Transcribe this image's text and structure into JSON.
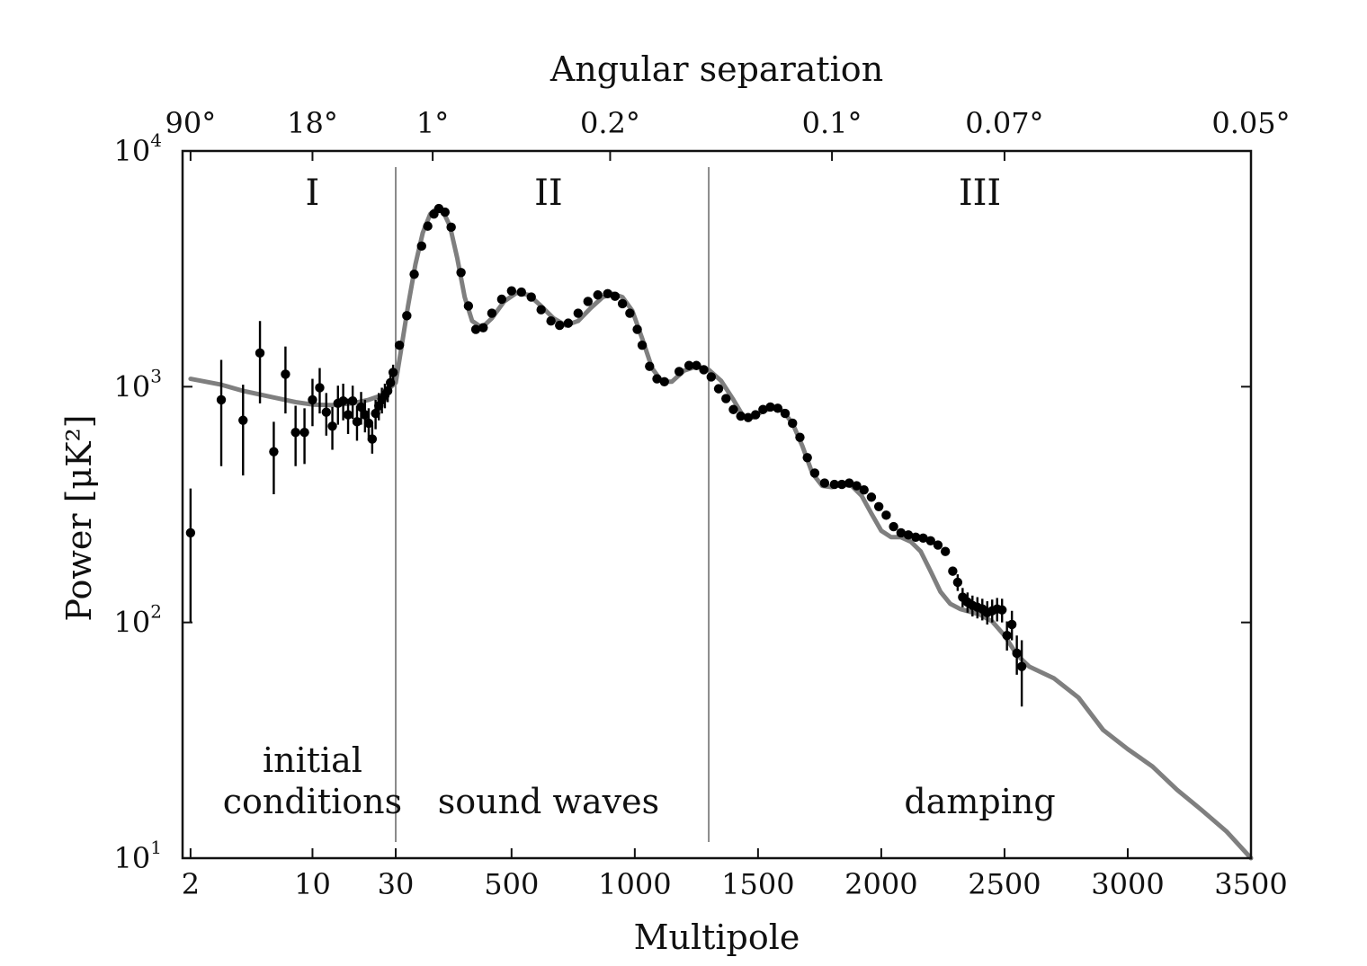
{
  "chart_data": {
    "type": "scatter",
    "title": "Angular separation",
    "xlabel": "Multipole",
    "ylabel": "Power [μK²]",
    "yscale": "log",
    "ylim": [
      10,
      10000
    ],
    "x_axis": {
      "segments": [
        {
          "scale": "log",
          "range": [
            1.8,
            30
          ]
        },
        {
          "scale": "linear",
          "range": [
            30,
            3500
          ]
        }
      ],
      "ticks": [
        2,
        10,
        30,
        500,
        1000,
        1500,
        2000,
        2500,
        3000,
        3500
      ],
      "tick_labels": [
        "2",
        "10",
        "30",
        "500",
        "1000",
        "1500",
        "2000",
        "2500",
        "3000",
        "3500"
      ]
    },
    "y_axis": {
      "ticks": [
        10,
        100,
        1000,
        10000
      ],
      "tick_labels": [
        {
          "base": "10",
          "exp": "1"
        },
        {
          "base": "10",
          "exp": "2"
        },
        {
          "base": "10",
          "exp": "3"
        },
        {
          "base": "10",
          "exp": "4"
        }
      ]
    },
    "top_axis": {
      "label": "Angular separation",
      "ticks": [
        {
          "multipole": 2,
          "label": "90°"
        },
        {
          "multipole": 10,
          "label": "18°"
        },
        {
          "multipole": 180,
          "label": "1°"
        },
        {
          "multipole": 900,
          "label": "0.2°"
        },
        {
          "multipole": 1800,
          "label": "0.1°"
        },
        {
          "multipole": 2500,
          "label": "0.07°"
        },
        {
          "multipole": 3500,
          "label": "0.05°"
        }
      ]
    },
    "region_dividers": [
      30,
      1300
    ],
    "regions": [
      {
        "numeral": "I",
        "description": [
          "initial",
          "conditions"
        ],
        "center": 10
      },
      {
        "numeral": "II",
        "description": [
          "sound waves"
        ],
        "center": 650
      },
      {
        "numeral": "III",
        "description": [
          "damping"
        ],
        "center": 2400
      }
    ],
    "model_curve": {
      "name": "theory",
      "color": "#7f7f7f",
      "points": [
        [
          2,
          1080
        ],
        [
          3,
          1020
        ],
        [
          4,
          960
        ],
        [
          6,
          900
        ],
        [
          8,
          860
        ],
        [
          10,
          840
        ],
        [
          13,
          835
        ],
        [
          17,
          850
        ],
        [
          21,
          880
        ],
        [
          25,
          920
        ],
        [
          30,
          1040
        ],
        [
          50,
          1400
        ],
        [
          80,
          2200
        ],
        [
          110,
          3300
        ],
        [
          140,
          4500
        ],
        [
          170,
          5400
        ],
        [
          200,
          5750
        ],
        [
          220,
          5600
        ],
        [
          250,
          4800
        ],
        [
          280,
          3500
        ],
        [
          310,
          2400
        ],
        [
          340,
          1900
        ],
        [
          380,
          1780
        ],
        [
          420,
          1950
        ],
        [
          470,
          2300
        ],
        [
          520,
          2500
        ],
        [
          570,
          2450
        ],
        [
          620,
          2200
        ],
        [
          670,
          1950
        ],
        [
          720,
          1820
        ],
        [
          770,
          1900
        ],
        [
          820,
          2150
        ],
        [
          870,
          2400
        ],
        [
          910,
          2480
        ],
        [
          950,
          2400
        ],
        [
          990,
          2100
        ],
        [
          1030,
          1600
        ],
        [
          1070,
          1200
        ],
        [
          1110,
          1050
        ],
        [
          1150,
          1050
        ],
        [
          1200,
          1170
        ],
        [
          1250,
          1220
        ],
        [
          1300,
          1180
        ],
        [
          1350,
          1060
        ],
        [
          1400,
          880
        ],
        [
          1440,
          750
        ],
        [
          1480,
          740
        ],
        [
          1520,
          790
        ],
        [
          1560,
          810
        ],
        [
          1600,
          790
        ],
        [
          1640,
          700
        ],
        [
          1680,
          560
        ],
        [
          1720,
          430
        ],
        [
          1760,
          380
        ],
        [
          1800,
          375
        ],
        [
          1840,
          385
        ],
        [
          1880,
          380
        ],
        [
          1920,
          345
        ],
        [
          1960,
          290
        ],
        [
          2000,
          245
        ],
        [
          2040,
          230
        ],
        [
          2080,
          230
        ],
        [
          2120,
          220
        ],
        [
          2160,
          200
        ],
        [
          2200,
          165
        ],
        [
          2240,
          135
        ],
        [
          2280,
          120
        ],
        [
          2320,
          114
        ],
        [
          2360,
          111
        ],
        [
          2400,
          108
        ],
        [
          2450,
          101
        ],
        [
          2500,
          88
        ],
        [
          2550,
          73
        ],
        [
          2600,
          65
        ],
        [
          2700,
          58
        ],
        [
          2800,
          48
        ],
        [
          2900,
          35
        ],
        [
          3000,
          29
        ],
        [
          3100,
          24.5
        ],
        [
          3200,
          19.5
        ],
        [
          3300,
          16
        ],
        [
          3400,
          13
        ],
        [
          3500,
          10
        ]
      ]
    },
    "measurements": {
      "name": "data",
      "color": "#000000",
      "points": [
        {
          "x": 2,
          "y": 240,
          "lo": 100,
          "hi": 370
        },
        {
          "x": 3,
          "y": 880,
          "lo": 460,
          "hi": 1300
        },
        {
          "x": 4,
          "y": 720,
          "lo": 420,
          "hi": 1020
        },
        {
          "x": 5,
          "y": 1390,
          "lo": 850,
          "hi": 1900
        },
        {
          "x": 6,
          "y": 530,
          "lo": 350,
          "hi": 710
        },
        {
          "x": 7,
          "y": 1130,
          "lo": 770,
          "hi": 1480
        },
        {
          "x": 8,
          "y": 640,
          "lo": 460,
          "hi": 830
        },
        {
          "x": 9,
          "y": 640,
          "lo": 470,
          "hi": 810
        },
        {
          "x": 10,
          "y": 880,
          "lo": 680,
          "hi": 1080
        },
        {
          "x": 11,
          "y": 990,
          "lo": 770,
          "hi": 1200
        },
        {
          "x": 12,
          "y": 780,
          "lo": 620,
          "hi": 940
        },
        {
          "x": 13,
          "y": 680,
          "lo": 540,
          "hi": 820
        },
        {
          "x": 14,
          "y": 850,
          "lo": 690,
          "hi": 1010
        },
        {
          "x": 15,
          "y": 870,
          "lo": 720,
          "hi": 1030
        },
        {
          "x": 16,
          "y": 760,
          "lo": 630,
          "hi": 890
        },
        {
          "x": 17,
          "y": 870,
          "lo": 730,
          "hi": 1010
        },
        {
          "x": 18,
          "y": 710,
          "lo": 590,
          "hi": 830
        },
        {
          "x": 19,
          "y": 820,
          "lo": 690,
          "hi": 950
        },
        {
          "x": 20,
          "y": 760,
          "lo": 640,
          "hi": 880
        },
        {
          "x": 21,
          "y": 700,
          "lo": 590,
          "hi": 810
        },
        {
          "x": 22,
          "y": 600,
          "lo": 520,
          "hi": 690
        },
        {
          "x": 23,
          "y": 770,
          "lo": 660,
          "hi": 880
        },
        {
          "x": 24,
          "y": 830,
          "lo": 720,
          "hi": 940
        },
        {
          "x": 25,
          "y": 880,
          "lo": 770,
          "hi": 990
        },
        {
          "x": 26,
          "y": 920,
          "lo": 810,
          "hi": 1030
        },
        {
          "x": 27,
          "y": 960,
          "lo": 860,
          "hi": 1060
        },
        {
          "x": 28,
          "y": 1040,
          "lo": 950,
          "hi": 1130
        },
        {
          "x": 29,
          "y": 1150,
          "lo": 1060,
          "hi": 1240
        },
        {
          "x": 45,
          "y": 1500
        },
        {
          "x": 75,
          "y": 2000
        },
        {
          "x": 105,
          "y": 3000
        },
        {
          "x": 135,
          "y": 3950
        },
        {
          "x": 160,
          "y": 4800
        },
        {
          "x": 185,
          "y": 5400
        },
        {
          "x": 205,
          "y": 5700
        },
        {
          "x": 230,
          "y": 5500
        },
        {
          "x": 255,
          "y": 4750
        },
        {
          "x": 295,
          "y": 3050
        },
        {
          "x": 325,
          "y": 2200
        },
        {
          "x": 355,
          "y": 1750
        },
        {
          "x": 385,
          "y": 1780
        },
        {
          "x": 420,
          "y": 2050
        },
        {
          "x": 460,
          "y": 2350
        },
        {
          "x": 500,
          "y": 2550
        },
        {
          "x": 540,
          "y": 2520
        },
        {
          "x": 580,
          "y": 2400
        },
        {
          "x": 620,
          "y": 2120
        },
        {
          "x": 660,
          "y": 1900
        },
        {
          "x": 695,
          "y": 1820
        },
        {
          "x": 730,
          "y": 1860
        },
        {
          "x": 770,
          "y": 2050
        },
        {
          "x": 810,
          "y": 2300
        },
        {
          "x": 850,
          "y": 2450
        },
        {
          "x": 890,
          "y": 2480
        },
        {
          "x": 920,
          "y": 2420
        },
        {
          "x": 950,
          "y": 2250
        },
        {
          "x": 980,
          "y": 2050
        },
        {
          "x": 1010,
          "y": 1750
        },
        {
          "x": 1030,
          "y": 1500
        },
        {
          "x": 1060,
          "y": 1220
        },
        {
          "x": 1090,
          "y": 1080
        },
        {
          "x": 1120,
          "y": 1050
        },
        {
          "x": 1180,
          "y": 1160
        },
        {
          "x": 1220,
          "y": 1230
        },
        {
          "x": 1250,
          "y": 1230
        },
        {
          "x": 1280,
          "y": 1180
        },
        {
          "x": 1310,
          "y": 1100
        },
        {
          "x": 1340,
          "y": 980
        },
        {
          "x": 1370,
          "y": 890
        },
        {
          "x": 1400,
          "y": 800
        },
        {
          "x": 1430,
          "y": 750
        },
        {
          "x": 1460,
          "y": 740
        },
        {
          "x": 1490,
          "y": 760
        },
        {
          "x": 1520,
          "y": 800
        },
        {
          "x": 1550,
          "y": 820
        },
        {
          "x": 1580,
          "y": 810
        },
        {
          "x": 1610,
          "y": 770
        },
        {
          "x": 1640,
          "y": 700
        },
        {
          "x": 1670,
          "y": 610
        },
        {
          "x": 1700,
          "y": 500
        },
        {
          "x": 1730,
          "y": 430
        },
        {
          "x": 1770,
          "y": 390
        },
        {
          "x": 1810,
          "y": 385
        },
        {
          "x": 1840,
          "y": 385
        },
        {
          "x": 1870,
          "y": 390
        },
        {
          "x": 1900,
          "y": 380
        },
        {
          "x": 1930,
          "y": 365
        },
        {
          "x": 1960,
          "y": 340
        },
        {
          "x": 1990,
          "y": 310
        },
        {
          "x": 2020,
          "y": 285
        },
        {
          "x": 2050,
          "y": 255
        },
        {
          "x": 2080,
          "y": 240
        },
        {
          "x": 2110,
          "y": 235
        },
        {
          "x": 2140,
          "y": 230
        },
        {
          "x": 2170,
          "y": 228
        },
        {
          "x": 2200,
          "y": 222
        },
        {
          "x": 2230,
          "y": 213
        },
        {
          "x": 2260,
          "y": 200
        },
        {
          "x": 2290,
          "y": 165
        },
        {
          "x": 2310,
          "y": 148,
          "lo": 136,
          "hi": 160
        },
        {
          "x": 2330,
          "y": 128,
          "lo": 116,
          "hi": 140
        },
        {
          "x": 2350,
          "y": 122,
          "lo": 110,
          "hi": 134
        },
        {
          "x": 2370,
          "y": 118,
          "lo": 106,
          "hi": 130
        },
        {
          "x": 2390,
          "y": 116,
          "lo": 104,
          "hi": 128
        },
        {
          "x": 2410,
          "y": 114,
          "lo": 102,
          "hi": 126
        },
        {
          "x": 2430,
          "y": 110,
          "lo": 98,
          "hi": 123
        },
        {
          "x": 2450,
          "y": 112,
          "lo": 100,
          "hi": 125
        },
        {
          "x": 2470,
          "y": 114,
          "lo": 101,
          "hi": 127
        },
        {
          "x": 2490,
          "y": 113,
          "lo": 100,
          "hi": 126
        },
        {
          "x": 2510,
          "y": 88,
          "lo": 76,
          "hi": 101
        },
        {
          "x": 2530,
          "y": 98,
          "lo": 84,
          "hi": 112
        },
        {
          "x": 2550,
          "y": 74,
          "lo": 60,
          "hi": 88
        },
        {
          "x": 2570,
          "y": 65,
          "lo": 44,
          "hi": 84
        }
      ]
    },
    "grid": false
  }
}
